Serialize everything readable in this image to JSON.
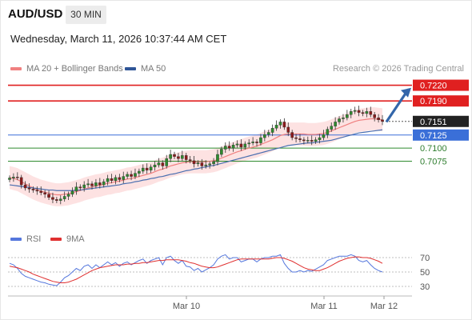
{
  "header": {
    "symbol": "AUD/USD",
    "timeframe": "30 MIN",
    "datetime": "Wednesday, March 11, 2026 10:37:44 AM CET"
  },
  "legend": {
    "ma20_label": "MA 20 + Bollinger Bands",
    "ma50_label": "MA 50",
    "attribution": "Research © 2026 Trading Central",
    "rsi_label": "RSI",
    "ma9_label": "9MA"
  },
  "colors": {
    "ma20": "#f08080",
    "ma50": "#4a6fb0",
    "band_fill": "#fde2e2",
    "resistance": "#e02020",
    "support": "#3a6fd8",
    "support_weak": "#2e8b2e",
    "price_tag": "#222222",
    "arrow": "#3366aa",
    "rsi": "#5577dd",
    "rsi_ma": "#e03030"
  },
  "chart_data": [
    {
      "type": "candlestick",
      "title": "AUD/USD",
      "x_ticks": [
        "Mar 10",
        "Mar 11",
        "Mar 12"
      ],
      "ylim": [
        0.694,
        0.723
      ],
      "current_price": "0.7151",
      "levels": [
        {
          "value": 0.722,
          "label": "0.7220",
          "kind": "resistance"
        },
        {
          "value": 0.719,
          "label": "0.7190",
          "kind": "resistance"
        },
        {
          "value": 0.7125,
          "label": "0.7125",
          "kind": "support"
        },
        {
          "value": 0.71,
          "label": "0.7100",
          "kind": "support_weak"
        },
        {
          "value": 0.7075,
          "label": "0.7075",
          "kind": "support_weak"
        }
      ],
      "close": [
        0.7043,
        0.7045,
        0.7044,
        0.703,
        0.7024,
        0.7022,
        0.702,
        0.7018,
        0.7015,
        0.7012,
        0.7006,
        0.7002,
        0.7,
        0.7003,
        0.7008,
        0.7012,
        0.7018,
        0.7026,
        0.7024,
        0.703,
        0.7032,
        0.7028,
        0.7034,
        0.703,
        0.7036,
        0.7042,
        0.7038,
        0.7044,
        0.704,
        0.7046,
        0.705,
        0.7046,
        0.7052,
        0.7056,
        0.7062,
        0.7058,
        0.7064,
        0.7068,
        0.7072,
        0.7066,
        0.708,
        0.7088,
        0.7084,
        0.708,
        0.7086,
        0.7078,
        0.7076,
        0.707,
        0.7072,
        0.7066,
        0.7068,
        0.707,
        0.7074,
        0.7088,
        0.7098,
        0.7104,
        0.71,
        0.7106,
        0.7108,
        0.7102,
        0.7108,
        0.711,
        0.7112,
        0.711,
        0.712,
        0.7126,
        0.713,
        0.7138,
        0.7144,
        0.715,
        0.714,
        0.713,
        0.712,
        0.7118,
        0.7116,
        0.7114,
        0.7115,
        0.7113,
        0.7116,
        0.712,
        0.7126,
        0.7136,
        0.7142,
        0.715,
        0.7156,
        0.7158,
        0.7164,
        0.717,
        0.7172,
        0.7168,
        0.7166,
        0.717,
        0.7164,
        0.7158,
        0.7154,
        0.7151
      ],
      "ma20": [
        0.7044,
        0.7042,
        0.704,
        0.7036,
        0.7032,
        0.7028,
        0.7024,
        0.7021,
        0.7018,
        0.7016,
        0.7014,
        0.7012,
        0.7011,
        0.7011,
        0.7012,
        0.7013,
        0.7015,
        0.7017,
        0.7019,
        0.7022,
        0.7024,
        0.7026,
        0.7028,
        0.7029,
        0.7031,
        0.7033,
        0.7034,
        0.7036,
        0.7037,
        0.7039,
        0.7041,
        0.7042,
        0.7044,
        0.7046,
        0.7048,
        0.705,
        0.7052,
        0.7055,
        0.7058,
        0.706,
        0.7063,
        0.7066,
        0.7068,
        0.707,
        0.7072,
        0.7073,
        0.7074,
        0.7074,
        0.7074,
        0.7074,
        0.7074,
        0.7075,
        0.7076,
        0.7078,
        0.7081,
        0.7084,
        0.7087,
        0.709,
        0.7093,
        0.7095,
        0.7098,
        0.71,
        0.7102,
        0.7104,
        0.7107,
        0.711,
        0.7113,
        0.7116,
        0.712,
        0.7124,
        0.7126,
        0.7127,
        0.7127,
        0.7127,
        0.7127,
        0.7127,
        0.7126,
        0.7126,
        0.7126,
        0.7127,
        0.7128,
        0.713,
        0.7133,
        0.7136,
        0.7139,
        0.7142,
        0.7145,
        0.7148,
        0.7151,
        0.7153,
        0.7154,
        0.7155,
        0.7156,
        0.7156,
        0.7155,
        0.7154
      ],
      "ma50": [
        0.703,
        0.7029,
        0.7028,
        0.7027,
        0.7026,
        0.7025,
        0.7024,
        0.7023,
        0.7022,
        0.7021,
        0.702,
        0.702,
        0.7019,
        0.7019,
        0.7019,
        0.7019,
        0.7019,
        0.702,
        0.702,
        0.7021,
        0.7022,
        0.7023,
        0.7024,
        0.7025,
        0.7026,
        0.7027,
        0.7028,
        0.7029,
        0.703,
        0.7032,
        0.7033,
        0.7034,
        0.7036,
        0.7037,
        0.7039,
        0.704,
        0.7042,
        0.7043,
        0.7045,
        0.7046,
        0.7048,
        0.705,
        0.7051,
        0.7053,
        0.7055,
        0.7057,
        0.7058,
        0.706,
        0.7061,
        0.7063,
        0.7064,
        0.7066,
        0.7067,
        0.7069,
        0.7071,
        0.7073,
        0.7075,
        0.7077,
        0.7079,
        0.7081,
        0.7083,
        0.7085,
        0.7087,
        0.7089,
        0.7091,
        0.7093,
        0.7095,
        0.7097,
        0.7099,
        0.7101,
        0.7103,
        0.7105,
        0.7106,
        0.7107,
        0.7108,
        0.7109,
        0.711,
        0.711,
        0.7111,
        0.7112,
        0.7113,
        0.7114,
        0.7115,
        0.7117,
        0.7119,
        0.7121,
        0.7123,
        0.7125,
        0.7127,
        0.7129,
        0.713,
        0.7131,
        0.7132,
        0.7133,
        0.7134,
        0.7135
      ],
      "forecast_arrow": {
        "from": 0.715,
        "to": 0.7212
      }
    },
    {
      "type": "line",
      "title": "RSI",
      "yticks": [
        30,
        50,
        70
      ],
      "ylim": [
        20,
        80
      ],
      "series": [
        {
          "name": "RSI",
          "values": [
            62,
            60,
            55,
            48,
            44,
            42,
            40,
            38,
            36,
            35,
            33,
            32,
            31,
            36,
            42,
            45,
            50,
            55,
            52,
            58,
            60,
            55,
            60,
            56,
            60,
            64,
            60,
            63,
            58,
            62,
            64,
            60,
            63,
            66,
            68,
            62,
            66,
            68,
            70,
            60,
            70,
            72,
            66,
            62,
            66,
            58,
            57,
            52,
            55,
            50,
            53,
            56,
            60,
            68,
            72,
            74,
            68,
            70,
            70,
            64,
            66,
            68,
            68,
            64,
            68,
            70,
            70,
            72,
            72,
            74,
            62,
            55,
            50,
            50,
            52,
            50,
            52,
            51,
            54,
            57,
            60,
            66,
            68,
            70,
            72,
            72,
            72,
            74,
            72,
            66,
            64,
            66,
            60,
            55,
            52,
            50
          ]
        },
        {
          "name": "9MA",
          "values": [
            58,
            57,
            56,
            54,
            52,
            50,
            47,
            45,
            43,
            41,
            39,
            37,
            36,
            35,
            35,
            36,
            38,
            40,
            43,
            46,
            49,
            52,
            54,
            56,
            57,
            58,
            59,
            60,
            60,
            60,
            61,
            61,
            62,
            62,
            63,
            63,
            64,
            65,
            66,
            66,
            67,
            67,
            67,
            67,
            66,
            65,
            63,
            62,
            60,
            58,
            57,
            56,
            56,
            57,
            59,
            61,
            63,
            65,
            67,
            68,
            68,
            68,
            68,
            68,
            68,
            68,
            68,
            69,
            70,
            70,
            69,
            67,
            65,
            62,
            59,
            56,
            54,
            53,
            52,
            52,
            54,
            56,
            59,
            62,
            65,
            67,
            69,
            70,
            71,
            71,
            70,
            70,
            69,
            67,
            65,
            62
          ]
        }
      ]
    }
  ]
}
